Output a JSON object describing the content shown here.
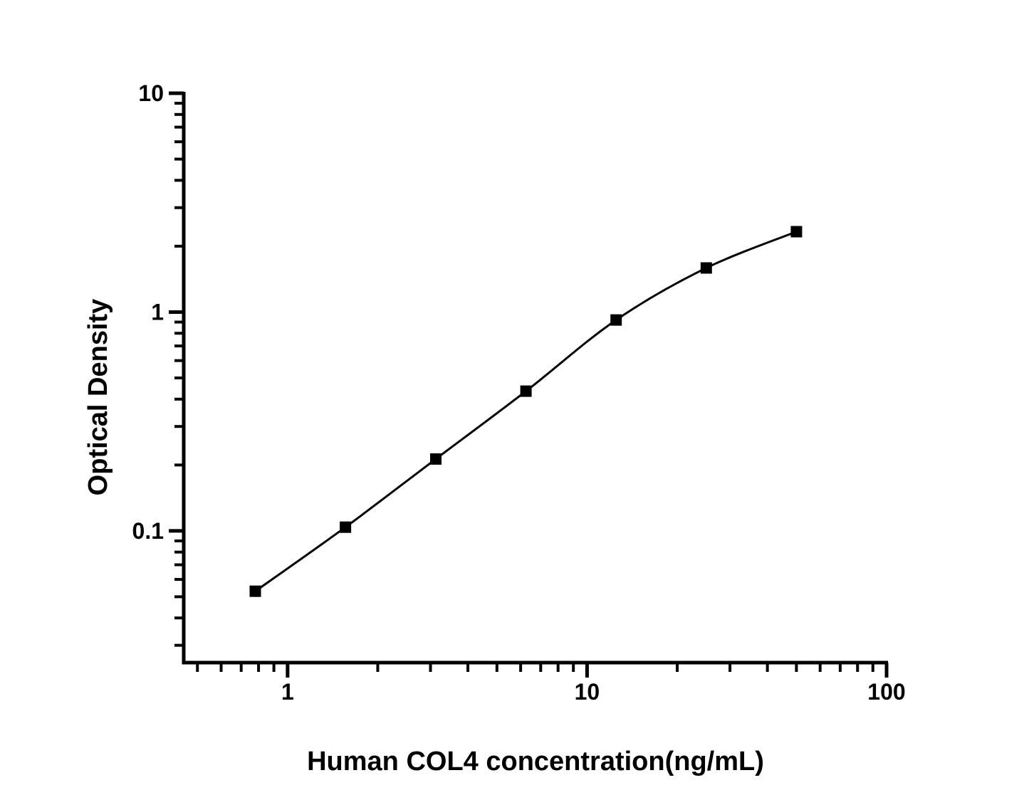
{
  "chart_data": {
    "type": "line",
    "subtype": "line-with-markers",
    "title": "",
    "xlabel": "Human COL4 concentration(ng/mL)",
    "ylabel": "Optical Density",
    "x_scale": "log",
    "y_scale": "log",
    "x": [
      0.78,
      1.56,
      3.125,
      6.25,
      12.5,
      25,
      50
    ],
    "y": [
      0.053,
      0.104,
      0.213,
      0.435,
      0.92,
      1.59,
      2.33
    ],
    "xlim": [
      0.45,
      100
    ],
    "ylim": [
      0.025,
      10
    ],
    "x_major_ticks": [
      1,
      10,
      100
    ],
    "x_major_tick_labels": [
      "1",
      "10",
      "100"
    ],
    "y_major_ticks": [
      0.1,
      1,
      10
    ],
    "y_major_tick_labels": [
      "0.1",
      "1",
      "10"
    ],
    "minor_ticks": "log-decade-2-to-9",
    "tick_direction": "out",
    "marker": "filled-square",
    "marker_size_px": 16,
    "grid": false,
    "legend": "none",
    "colors": {
      "line": "#000000",
      "marker": "#000000",
      "axis": "#000000",
      "text": "#000000",
      "background": "#ffffff"
    }
  }
}
